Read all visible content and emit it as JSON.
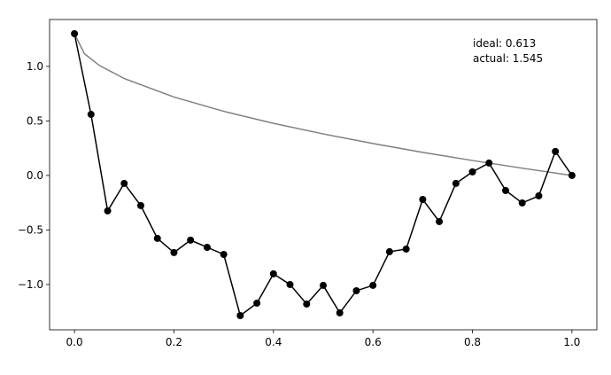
{
  "chart_data": {
    "type": "line",
    "annotations": [
      "ideal: 0.613",
      "actual: 1.545"
    ],
    "series": [
      {
        "color": "#808080",
        "marker": false,
        "x": [
          0,
          0.02,
          0.05,
          0.1,
          0.2,
          0.3,
          0.4,
          0.5,
          0.6,
          0.7,
          0.8,
          0.9,
          1.0
        ],
        "values": [
          1.3,
          1.116,
          1.009,
          0.889,
          0.719,
          0.588,
          0.478,
          0.381,
          0.293,
          0.212,
          0.137,
          0.067,
          0
        ]
      },
      {
        "color": "#000000",
        "marker": true,
        "x": [
          0,
          0.0333,
          0.0667,
          0.1,
          0.1333,
          0.1667,
          0.2,
          0.2333,
          0.2667,
          0.3,
          0.3333,
          0.3667,
          0.4,
          0.4333,
          0.4667,
          0.5,
          0.5333,
          0.5667,
          0.6,
          0.6333,
          0.6667,
          0.7,
          0.7333,
          0.7667,
          0.8,
          0.8333,
          0.8667,
          0.9,
          0.9333,
          0.9667,
          1.0
        ],
        "values": [
          1.3,
          0.56,
          -0.325,
          -0.073,
          -0.276,
          -0.577,
          -0.707,
          -0.593,
          -0.659,
          -0.724,
          -1.285,
          -1.171,
          -0.902,
          -1.0,
          -1.179,
          -1.008,
          -1.26,
          -1.057,
          -1.008,
          -0.699,
          -0.675,
          -0.22,
          -0.423,
          -0.073,
          0.033,
          0.114,
          -0.138,
          -0.252,
          -0.187,
          0.22,
          0
        ]
      }
    ],
    "xlim": [
      -0.05,
      1.05
    ],
    "ylim": [
      -1.415,
      1.43
    ],
    "xticks": [
      {
        "value": 0,
        "label": "0.0"
      },
      {
        "value": 0.2,
        "label": "0.2"
      },
      {
        "value": 0.4,
        "label": "0.4"
      },
      {
        "value": 0.6,
        "label": "0.6"
      },
      {
        "value": 0.8,
        "label": "0.8"
      },
      {
        "value": 1.0,
        "label": "1.0"
      }
    ],
    "yticks": [
      {
        "value": -1.0,
        "label": "−1.0"
      },
      {
        "value": -0.5,
        "label": "−0.5"
      },
      {
        "value": 0,
        "label": "0.0"
      },
      {
        "value": 0.5,
        "label": "0.5"
      },
      {
        "value": 1.0,
        "label": "1.0"
      }
    ]
  }
}
